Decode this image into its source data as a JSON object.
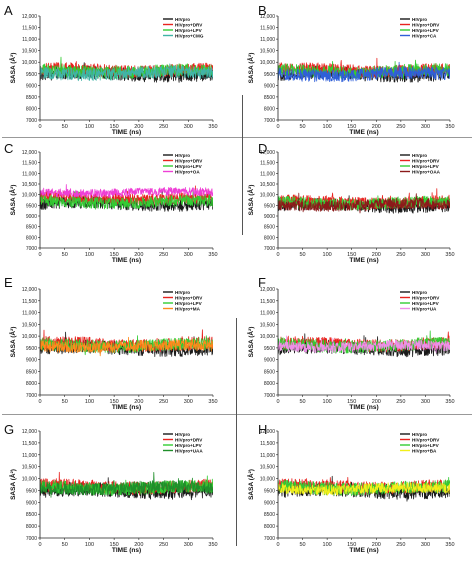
{
  "chart_data": [
    {
      "panel_label": "A",
      "type": "line",
      "xlabel": "TIME (ns)",
      "ylabel": "SASA (Å²)",
      "xlim": [
        0,
        350
      ],
      "ylim": [
        7000,
        12000
      ],
      "xticks": [
        "0",
        "50",
        "100",
        "150",
        "200",
        "250",
        "300",
        "350"
      ],
      "yticks": [
        "7000",
        "8000",
        "8500",
        "9000",
        "9500",
        "10,000",
        "10,500",
        "11,000",
        "11,500",
        "12,000"
      ],
      "series": [
        {
          "name": "HIVpro",
          "color": "#1a1a1a",
          "mean": 9200,
          "amp": 320
        },
        {
          "name": "HIVpro+DRV",
          "color": "#e8231f",
          "mean": 9400,
          "amp": 300
        },
        {
          "name": "HIVpro+LPV",
          "color": "#33cc33",
          "mean": 9350,
          "amp": 300
        },
        {
          "name": "HIVpro+CMG",
          "color": "#40b4a6",
          "mean": 9250,
          "amp": 300
        }
      ]
    },
    {
      "panel_label": "B",
      "type": "line",
      "xlabel": "TIME (ns)",
      "ylabel": "SASA (Å²)",
      "xlim": [
        0,
        350
      ],
      "ylim": [
        7000,
        12000
      ],
      "xticks": [
        "0",
        "50",
        "100",
        "150",
        "200",
        "250",
        "300",
        "350"
      ],
      "yticks": [
        "7000",
        "8000",
        "8500",
        "9000",
        "9500",
        "10,000",
        "10,500",
        "11,000",
        "11,500",
        "12,000"
      ],
      "series": [
        {
          "name": "HIVpro",
          "color": "#1a1a1a",
          "mean": 9200,
          "amp": 320
        },
        {
          "name": "HIVpro+DRV",
          "color": "#e8231f",
          "mean": 9400,
          "amp": 300
        },
        {
          "name": "HIVpro+LPV",
          "color": "#33cc33",
          "mean": 9350,
          "amp": 300
        },
        {
          "name": "HIVpro+CA",
          "color": "#2f5fd8",
          "mean": 9200,
          "amp": 300
        }
      ]
    },
    {
      "panel_label": "C",
      "type": "line",
      "xlabel": "TIME (ns)",
      "ylabel": "SASA (Å²)",
      "xlim": [
        0,
        350
      ],
      "ylim": [
        7000,
        12000
      ],
      "xticks": [
        "0",
        "50",
        "100",
        "150",
        "200",
        "250",
        "300",
        "350"
      ],
      "yticks": [
        "7000",
        "8000",
        "8500",
        "9000",
        "9500",
        "10,000",
        "10,500",
        "11,000",
        "11,500",
        "12,000"
      ],
      "series": [
        {
          "name": "HIVpro",
          "color": "#1a1a1a",
          "mean": 9300,
          "amp": 320
        },
        {
          "name": "HIVpro+DRV",
          "color": "#e8231f",
          "mean": 9600,
          "amp": 300
        },
        {
          "name": "HIVpro+LPV",
          "color": "#33cc33",
          "mean": 9400,
          "amp": 300
        },
        {
          "name": "HIVpro+OA",
          "color": "#ee3fd6",
          "mean": 9900,
          "amp": 220
        }
      ]
    },
    {
      "panel_label": "D",
      "type": "line",
      "xlabel": "TIME (ns)",
      "ylabel": "SASA (Å²)",
      "xlim": [
        0,
        350
      ],
      "ylim": [
        7000,
        12000
      ],
      "xticks": [
        "0",
        "50",
        "100",
        "150",
        "200",
        "250",
        "300",
        "350"
      ],
      "yticks": [
        "7000",
        "8000",
        "8500",
        "9000",
        "9500",
        "10,000",
        "10,500",
        "11,000",
        "11,500",
        "12,000"
      ],
      "series": [
        {
          "name": "HIVpro",
          "color": "#1a1a1a",
          "mean": 9200,
          "amp": 320
        },
        {
          "name": "HIVpro+DRV",
          "color": "#e8231f",
          "mean": 9400,
          "amp": 300
        },
        {
          "name": "HIVpro+LPV",
          "color": "#33cc33",
          "mean": 9350,
          "amp": 300
        },
        {
          "name": "HIVpro+OAA",
          "color": "#8b1a1a",
          "mean": 9250,
          "amp": 280
        }
      ]
    },
    {
      "panel_label": "E",
      "type": "line",
      "xlabel": "TIME (ns)",
      "ylabel": "SASA (Å²)",
      "xlim": [
        0,
        350
      ],
      "ylim": [
        7000,
        12000
      ],
      "xticks": [
        "0",
        "50",
        "100",
        "150",
        "200",
        "250",
        "300",
        "350"
      ],
      "yticks": [
        "7000",
        "8000",
        "8500",
        "9000",
        "9500",
        "10,000",
        "10,500",
        "11,000",
        "11,500",
        "12,000"
      ],
      "series": [
        {
          "name": "HIVpro",
          "color": "#1a1a1a",
          "mean": 9200,
          "amp": 320
        },
        {
          "name": "HIVpro+DRV",
          "color": "#e8231f",
          "mean": 9400,
          "amp": 300
        },
        {
          "name": "HIVpro+LPV",
          "color": "#33cc33",
          "mean": 9350,
          "amp": 300
        },
        {
          "name": "HIVpro+MA",
          "color": "#ff8a1c",
          "mean": 9300,
          "amp": 260
        }
      ]
    },
    {
      "panel_label": "F",
      "type": "line",
      "xlabel": "TIME (ns)",
      "ylabel": "SASA (Å²)",
      "xlim": [
        0,
        350
      ],
      "ylim": [
        7000,
        12000
      ],
      "xticks": [
        "0",
        "50",
        "100",
        "150",
        "200",
        "250",
        "300",
        "350"
      ],
      "yticks": [
        "7000",
        "8000",
        "8500",
        "9000",
        "9500",
        "10,000",
        "10,500",
        "11,000",
        "11,500",
        "12,000"
      ],
      "series": [
        {
          "name": "HIVpro",
          "color": "#1a1a1a",
          "mean": 9200,
          "amp": 320
        },
        {
          "name": "HIVpro+DRV",
          "color": "#e8231f",
          "mean": 9400,
          "amp": 300
        },
        {
          "name": "HIVpro+LPV",
          "color": "#33cc33",
          "mean": 9350,
          "amp": 300
        },
        {
          "name": "HIVpro+UA",
          "color": "#ef8ee8",
          "mean": 9300,
          "amp": 240
        }
      ]
    },
    {
      "panel_label": "G",
      "type": "line",
      "xlabel": "TIME (ns)",
      "ylabel": "SASA (Å²)",
      "xlim": [
        0,
        350
      ],
      "ylim": [
        7000,
        12000
      ],
      "xticks": [
        "0",
        "50",
        "100",
        "150",
        "200",
        "250",
        "300",
        "350"
      ],
      "yticks": [
        "7000",
        "8000",
        "8500",
        "9000",
        "9500",
        "10,000",
        "10,500",
        "11,000",
        "11,500",
        "12,000"
      ],
      "series": [
        {
          "name": "HIVpro",
          "color": "#1a1a1a",
          "mean": 9200,
          "amp": 320
        },
        {
          "name": "HIVpro+DRV",
          "color": "#e8231f",
          "mean": 9400,
          "amp": 300
        },
        {
          "name": "HIVpro+LPV",
          "color": "#33cc33",
          "mean": 9350,
          "amp": 300
        },
        {
          "name": "HIVpro+UAA",
          "color": "#1f8f2a",
          "mean": 9350,
          "amp": 280
        }
      ]
    },
    {
      "panel_label": "H",
      "type": "line",
      "xlabel": "TIME (ns)",
      "ylabel": "SASA (Å²)",
      "xlim": [
        0,
        350
      ],
      "ylim": [
        7000,
        12000
      ],
      "xticks": [
        "0",
        "50",
        "100",
        "150",
        "200",
        "250",
        "300",
        "350"
      ],
      "yticks": [
        "7000",
        "8000",
        "8500",
        "9000",
        "9500",
        "10,000",
        "10,500",
        "11,000",
        "11,500",
        "12,000"
      ],
      "series": [
        {
          "name": "HIVpro",
          "color": "#1a1a1a",
          "mean": 9200,
          "amp": 320
        },
        {
          "name": "HIVpro+DRV",
          "color": "#e8231f",
          "mean": 9400,
          "amp": 300
        },
        {
          "name": "HIVpro+LPV",
          "color": "#33cc33",
          "mean": 9350,
          "amp": 300
        },
        {
          "name": "HIVpro+BA",
          "color": "#f2ef1a",
          "mean": 9300,
          "amp": 240
        }
      ]
    }
  ]
}
